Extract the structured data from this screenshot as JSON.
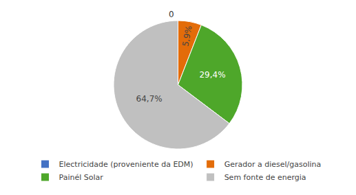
{
  "chart_data": {
    "type": "pie",
    "categories": [
      "Electricidade (proveniente da EDM)",
      "Gerador a diesel/gasolina",
      "Painél Solar",
      "Sem fonte de energia"
    ],
    "values": [
      0.0,
      5.9,
      29.4,
      64.7
    ],
    "value_labels": [
      "0",
      "5,9%",
      "29,4%",
      "64,7%"
    ],
    "colors": [
      "#4472C4",
      "#E36C09",
      "#4EA72A",
      "#C0C0C0"
    ],
    "data_labels": true,
    "legend": "bottom"
  }
}
